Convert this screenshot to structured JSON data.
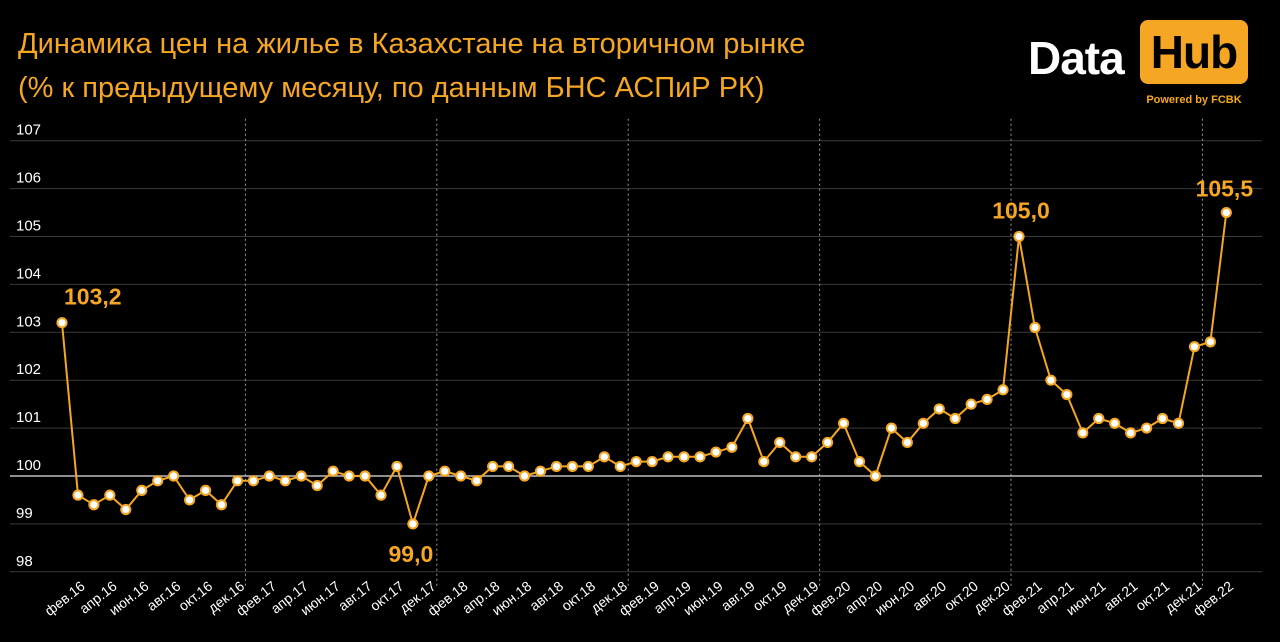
{
  "header": {
    "title_line1": "Динамика цен на жилье в Казахстане на вторичном рынке",
    "title_line2": "(% к предыдущему месяцу, по данным БНС АСПиР РК)"
  },
  "logo": {
    "word1": "Data",
    "word2": "Hub",
    "powered": "Powered by FCBK"
  },
  "colors": {
    "accent": "#f5a623",
    "background": "#000000",
    "grid": "#3a3a3a",
    "text": "#ffffff"
  },
  "chart_data": {
    "type": "line",
    "title": "Динамика цен на жилье в Казахстане на вторичном рынке",
    "subtitle": "(% к предыдущему месяцу, по данным БНС АСПиР РК)",
    "xlabel": "",
    "ylabel": "",
    "ylim": [
      98,
      107
    ],
    "yticks": [
      "98",
      "99",
      "100",
      "101",
      "102",
      "103",
      "104",
      "105",
      "106",
      "107"
    ],
    "grid": true,
    "x_start": "2016-01",
    "x_tick_labels": [
      "фев.16",
      "апр.16",
      "июн.16",
      "авг.16",
      "окт.16",
      "дек.16",
      "фев.17",
      "апр.17",
      "июн.17",
      "авг.17",
      "окт.17",
      "дек.17",
      "фев.18",
      "апр.18",
      "июн.18",
      "авг.18",
      "окт.18",
      "дек.18",
      "фев.19",
      "апр.19",
      "июн.19",
      "авг.19",
      "окт.19",
      "дек.19",
      "фев.20",
      "апр.20",
      "июн.20",
      "авг.20",
      "окт.20",
      "дек.20",
      "фев.21",
      "апр.21",
      "июн.21",
      "авг.21",
      "окт.21",
      "дек.21",
      "фев.22"
    ],
    "values": [
      103.2,
      99.6,
      99.4,
      99.6,
      99.3,
      99.7,
      99.9,
      100.0,
      99.5,
      99.7,
      99.4,
      99.9,
      99.9,
      100.0,
      99.9,
      100.0,
      99.8,
      100.1,
      100.0,
      100.0,
      99.6,
      100.2,
      99.0,
      100.0,
      100.1,
      100.0,
      99.9,
      100.2,
      100.2,
      100.0,
      100.1,
      100.2,
      100.2,
      100.2,
      100.4,
      100.2,
      100.3,
      100.3,
      100.4,
      100.4,
      100.4,
      100.5,
      100.6,
      101.2,
      100.3,
      100.7,
      100.4,
      100.4,
      100.7,
      101.1,
      100.3,
      100.0,
      101.0,
      100.7,
      101.1,
      101.4,
      101.2,
      101.5,
      101.6,
      101.8,
      105.0,
      103.1,
      102.0,
      101.7,
      100.9,
      101.2,
      101.1,
      100.9,
      101.0,
      101.2,
      101.1,
      102.7,
      102.8,
      105.5
    ],
    "annotations": [
      {
        "index": 0,
        "label": "103,2"
      },
      {
        "index": 22,
        "label": "99,0"
      },
      {
        "index": 60,
        "label": "105,0"
      },
      {
        "index": 73,
        "label": "105,5"
      }
    ],
    "series_color": "#f5a623"
  }
}
